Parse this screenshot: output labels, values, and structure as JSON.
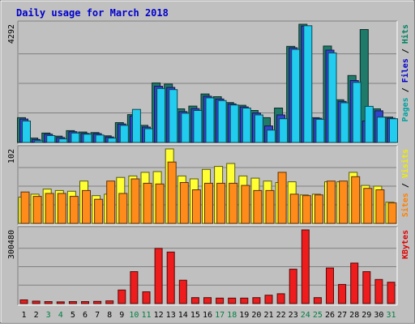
{
  "chart_data": {
    "type": "bar",
    "title": "Daily usage for March 2018",
    "categories": [
      "1",
      "2",
      "3",
      "4",
      "5",
      "6",
      "7",
      "8",
      "9",
      "10",
      "11",
      "12",
      "13",
      "14",
      "15",
      "16",
      "17",
      "18",
      "19",
      "20",
      "21",
      "22",
      "23",
      "24",
      "25",
      "26",
      "27",
      "28",
      "29",
      "30",
      "31"
    ],
    "weekend_days": [
      "3",
      "4",
      "10",
      "11",
      "17",
      "18",
      "24",
      "25",
      "31"
    ],
    "panels": [
      {
        "id": "top",
        "max_label": "4292",
        "ymax": 4292,
        "axis_labels": [
          {
            "text": "Pages",
            "color": "#00a0a0"
          },
          {
            "text": " / ",
            "color": "#000000"
          },
          {
            "text": "Files",
            "color": "#0000cc"
          },
          {
            "text": " / ",
            "color": "#000000"
          },
          {
            "text": "Hits",
            "color": "#008060"
          }
        ],
        "series": [
          {
            "name": "Hits",
            "color": "#1f7a6a",
            "values": [
              900,
              160,
              340,
              230,
              430,
              380,
              360,
              240,
              720,
              1010,
              620,
              2160,
              2120,
              1220,
              1320,
              1760,
              1660,
              1450,
              1350,
              1160,
              900,
              1250,
              3490,
              4292,
              900,
              3500,
              1550,
              2430,
              4100,
              1220,
              920
            ]
          },
          {
            "name": "Files",
            "color": "#3344cc",
            "values": [
              850,
              110,
              300,
              180,
              390,
              330,
              320,
              200,
              670,
              960,
              560,
              2040,
              2000,
              1120,
              1230,
              1680,
              1580,
              1400,
              1290,
              1070,
              600,
              1000,
              3440,
              4230,
              880,
              3350,
              1490,
              2250,
              780,
              1150,
              880
            ]
          },
          {
            "name": "Pages",
            "color": "#22ccee",
            "values": [
              780,
              60,
              250,
              130,
              340,
              300,
              270,
              160,
              620,
              1200,
              500,
              1960,
              1920,
              1060,
              1160,
              1620,
              1520,
              1360,
              1250,
              1000,
              450,
              860,
              3380,
              4240,
              840,
              3250,
              1440,
              2180,
              1310,
              920,
              860
            ]
          }
        ]
      },
      {
        "id": "middle",
        "max_label": "102",
        "ymax": 102,
        "axis_labels": [
          {
            "text": "Sites",
            "color": "#ff8000"
          },
          {
            "text": " / ",
            "color": "#000000"
          },
          {
            "text": "Visits",
            "color": "#eeee00"
          }
        ],
        "series": [
          {
            "name": "Visits",
            "color": "#ffff33",
            "values": [
              36,
              40,
              47,
              45,
              44,
              58,
              38,
              40,
              63,
              65,
              70,
              71,
              102,
              65,
              61,
              74,
              78,
              82,
              65,
              62,
              58,
              56,
              57,
              39,
              40,
              57,
              57,
              70,
              52,
              51,
              29
            ]
          },
          {
            "name": "Sites",
            "color": "#ff8c1a",
            "values": [
              43,
              37,
              41,
              41,
              37,
              45,
              33,
              58,
              41,
              61,
              55,
              54,
              84,
              56,
              46,
              55,
              55,
              55,
              52,
              45,
              45,
              70,
              40,
              38,
              39,
              58,
              58,
              64,
              48,
              46,
              28
            ]
          }
        ]
      },
      {
        "id": "bottom",
        "max_label": "300480",
        "ymax": 300480,
        "axis_labels": [
          {
            "text": "KBytes",
            "color": "#dd0000"
          }
        ],
        "series": [
          {
            "name": "KBytes",
            "color": "#ee1c1c",
            "values": [
              15000,
              10000,
              8000,
              7000,
              8000,
              8000,
              9000,
              11000,
              55000,
              130000,
              48000,
              225000,
              210000,
              95000,
              24000,
              24000,
              22000,
              22000,
              22000,
              24000,
              34000,
              40000,
              140000,
              300480,
              24000,
              145000,
              78000,
              165000,
              130000,
              98000,
              87000
            ]
          }
        ]
      }
    ]
  }
}
